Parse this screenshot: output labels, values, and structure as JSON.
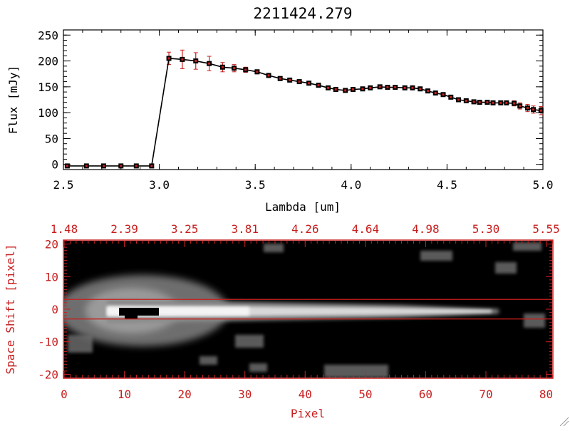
{
  "chart_data": [
    {
      "type": "line",
      "title": "2211424.279",
      "xlabel": "Lambda [um]",
      "ylabel": "Flux [mJy]",
      "xlim": [
        2.5,
        5.0
      ],
      "ylim": [
        -10,
        260
      ],
      "xticks": [
        2.5,
        3.0,
        3.5,
        4.0,
        4.5,
        5.0
      ],
      "xtick_labels": [
        "2.5",
        "3.0",
        "3.5",
        "4.0",
        "4.5",
        "5.0"
      ],
      "yticks": [
        0,
        50,
        100,
        150,
        200,
        250
      ],
      "ytick_labels": [
        "0",
        "50",
        "100",
        "150",
        "200",
        "250"
      ],
      "grid": false,
      "line_color": "#000000",
      "marker_color": "#c81e1e",
      "errorbar_color": "#c81e1e",
      "series": [
        {
          "x": [
            2.52,
            2.62,
            2.71,
            2.8,
            2.88,
            2.96,
            3.05,
            3.12,
            3.19,
            3.26,
            3.33,
            3.39,
            3.45,
            3.51,
            3.57,
            3.63,
            3.68,
            3.73,
            3.78,
            3.83,
            3.88,
            3.92,
            3.97,
            4.01,
            4.06,
            4.1,
            4.15,
            4.19,
            4.23,
            4.28,
            4.32,
            4.36,
            4.4,
            4.44,
            4.48,
            4.52,
            4.56,
            4.6,
            4.64,
            4.67,
            4.71,
            4.74,
            4.78,
            4.81,
            4.85,
            4.88,
            4.92,
            4.95,
            4.99
          ],
          "y": [
            -3,
            -3,
            -3,
            -3,
            -3,
            -3,
            205,
            203,
            200,
            195,
            188,
            186,
            183,
            179,
            172,
            166,
            163,
            160,
            157,
            153,
            148,
            145,
            143,
            145,
            146,
            148,
            150,
            149,
            149,
            148,
            148,
            146,
            142,
            138,
            135,
            130,
            125,
            123,
            121,
            120,
            120,
            119,
            119,
            119,
            118,
            113,
            109,
            106,
            104
          ],
          "yerr": [
            1,
            1,
            1,
            1,
            1,
            1,
            12,
            18,
            16,
            14,
            9,
            7,
            5,
            4,
            4,
            4,
            3,
            3,
            3,
            3,
            3,
            3,
            3,
            3,
            3,
            3,
            3,
            3,
            3,
            3,
            3,
            3,
            3,
            3,
            3,
            3,
            3,
            3,
            3,
            3,
            3,
            3,
            3,
            3,
            5,
            6,
            7,
            7,
            8
          ]
        }
      ]
    },
    {
      "type": "heatmap",
      "xlabel": "Pixel",
      "ylabel": "Space Shift [pixel]",
      "xlim": [
        0,
        81
      ],
      "ylim": [
        -21,
        21
      ],
      "xticks": [
        0,
        10,
        20,
        30,
        40,
        50,
        60,
        70,
        80
      ],
      "xtick_labels": [
        "0",
        "10",
        "20",
        "30",
        "40",
        "50",
        "60",
        "70",
        "80"
      ],
      "yticks": [
        -20,
        -10,
        0,
        10,
        20
      ],
      "ytick_labels": [
        "-20",
        "-10",
        "0",
        "10",
        "20"
      ],
      "top_axis_ticks": [
        0,
        10,
        20,
        30,
        40,
        50,
        60,
        70,
        80
      ],
      "top_axis_labels": [
        "1.48",
        "2.39",
        "3.25",
        "3.81",
        "4.26",
        "4.64",
        "4.98",
        "5.30",
        "5.55"
      ],
      "aperture_lines": [
        3,
        -3
      ],
      "axis_color": "#c81e1e",
      "colormap": "grayscale"
    }
  ]
}
